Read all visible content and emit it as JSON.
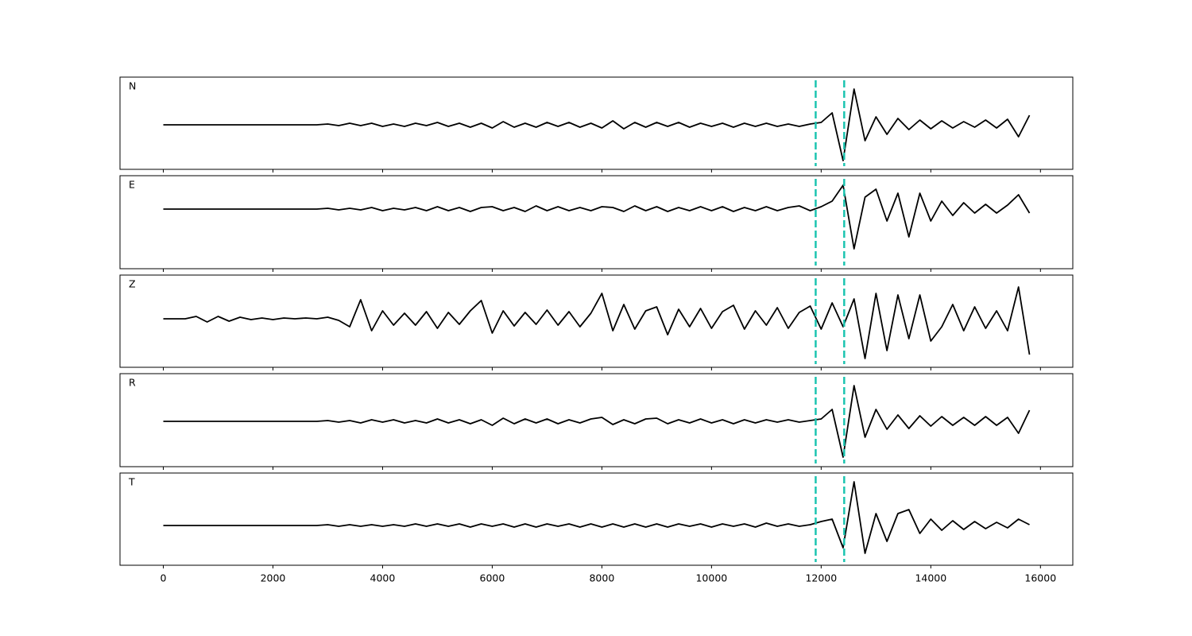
{
  "chart_data": {
    "type": "line",
    "x": [
      0,
      200,
      400,
      600,
      800,
      1000,
      1200,
      1400,
      1600,
      1800,
      2000,
      2200,
      2400,
      2600,
      2800,
      3000,
      3200,
      3400,
      3600,
      3800,
      4000,
      4200,
      4400,
      4600,
      4800,
      5000,
      5200,
      5400,
      5600,
      5800,
      6000,
      6200,
      6400,
      6600,
      6800,
      7000,
      7200,
      7400,
      7600,
      7800,
      8000,
      8200,
      8400,
      8600,
      8800,
      9000,
      9200,
      9400,
      9600,
      9800,
      10000,
      10200,
      10400,
      10600,
      10800,
      11000,
      11200,
      11400,
      11600,
      11800,
      12000,
      12200,
      12400,
      12600,
      12800,
      13000,
      13200,
      13400,
      13600,
      13800,
      14000,
      14200,
      14400,
      14600,
      14800,
      15000,
      15200,
      15400,
      15600,
      15800
    ],
    "xlim": [
      -790,
      16590
    ],
    "xticks": [
      0,
      2000,
      4000,
      6000,
      8000,
      10000,
      12000,
      14000,
      16000
    ],
    "vlines": [
      11900,
      12420
    ],
    "vline_color": "#1cc4b0",
    "series": [
      {
        "name": "N",
        "color": "#000000",
        "ylim": [
          -5.6,
          6.0
        ],
        "values": [
          0,
          0,
          0,
          0,
          0,
          0,
          0,
          0,
          0,
          0,
          0,
          0,
          0,
          0,
          0,
          0.1,
          -0.1,
          0.2,
          -0.1,
          0.2,
          -0.2,
          0.1,
          -0.2,
          0.2,
          -0.1,
          0.3,
          -0.2,
          0.2,
          -0.3,
          0.2,
          -0.4,
          0.4,
          -0.3,
          0.2,
          -0.3,
          0.3,
          -0.2,
          0.3,
          -0.3,
          0.2,
          -0.4,
          0.5,
          -0.5,
          0.3,
          -0.3,
          0.3,
          -0.2,
          0.3,
          -0.3,
          0.2,
          -0.2,
          0.2,
          -0.3,
          0.2,
          -0.2,
          0.2,
          -0.2,
          0.1,
          -0.2,
          0.1,
          0.3,
          1.5,
          -4.5,
          4.5,
          -2.0,
          1.0,
          -1.2,
          0.8,
          -0.6,
          0.6,
          -0.5,
          0.5,
          -0.4,
          0.4,
          -0.3,
          0.6,
          -0.4,
          0.7,
          -1.5,
          1.2
        ]
      },
      {
        "name": "E",
        "color": "#000000",
        "ylim": [
          -7.5,
          4.2
        ],
        "values": [
          0,
          0,
          0,
          0,
          0,
          0,
          0,
          0,
          0,
          0,
          0,
          0,
          0,
          0,
          0,
          0.1,
          -0.1,
          0.1,
          -0.1,
          0.2,
          -0.2,
          0.1,
          -0.1,
          0.2,
          -0.2,
          0.3,
          -0.2,
          0.2,
          -0.3,
          0.2,
          0.3,
          -0.2,
          0.2,
          -0.3,
          0.4,
          -0.2,
          0.3,
          -0.2,
          0.2,
          -0.2,
          0.3,
          0.2,
          -0.3,
          0.4,
          -0.2,
          0.3,
          -0.3,
          0.2,
          -0.2,
          0.3,
          -0.2,
          0.3,
          -0.3,
          0.2,
          -0.2,
          0.3,
          -0.2,
          0.2,
          0.4,
          -0.2,
          0.3,
          1.0,
          3.0,
          -5.0,
          1.5,
          2.5,
          -1.5,
          2.0,
          -3.5,
          2.0,
          -1.5,
          1.0,
          -0.8,
          0.8,
          -0.5,
          0.6,
          -0.5,
          0.5,
          1.8,
          -0.5
        ]
      },
      {
        "name": "Z",
        "color": "#000000",
        "ylim": [
          -6.1,
          5.5
        ],
        "values": [
          0,
          0,
          0,
          0.3,
          -0.4,
          0.3,
          -0.3,
          0.2,
          -0.1,
          0.1,
          -0.1,
          0.1,
          0,
          0.1,
          0,
          0.2,
          -0.2,
          -1.0,
          2.4,
          -1.5,
          1.0,
          -0.8,
          0.7,
          -0.8,
          0.9,
          -1.2,
          0.8,
          -0.7,
          1.0,
          2.3,
          -1.8,
          1.0,
          -0.9,
          0.8,
          -0.7,
          1.1,
          -0.8,
          0.9,
          -1.0,
          0.7,
          3.2,
          -1.5,
          1.8,
          -1.3,
          1.0,
          1.5,
          -2.0,
          1.2,
          -1.0,
          1.3,
          -1.2,
          0.9,
          1.7,
          -1.3,
          1.0,
          -0.8,
          1.4,
          -1.2,
          0.8,
          1.6,
          -1.3,
          2.0,
          -1.0,
          2.5,
          -5.0,
          3.2,
          -4.0,
          3.0,
          -2.5,
          3.0,
          -2.8,
          -1.0,
          1.8,
          -1.5,
          1.5,
          -1.2,
          1.0,
          -1.5,
          4.0,
          -4.5
        ]
      },
      {
        "name": "R",
        "color": "#000000",
        "ylim": [
          -5.7,
          6.0
        ],
        "values": [
          0,
          0,
          0,
          0,
          0,
          0,
          0,
          0,
          0,
          0,
          0,
          0,
          0,
          0,
          0,
          0.1,
          -0.1,
          0.1,
          -0.2,
          0.2,
          -0.1,
          0.2,
          -0.2,
          0.1,
          -0.2,
          0.3,
          -0.2,
          0.2,
          -0.3,
          0.2,
          -0.5,
          0.4,
          -0.3,
          0.3,
          -0.2,
          0.3,
          -0.3,
          0.2,
          -0.2,
          0.3,
          0.5,
          -0.4,
          0.2,
          -0.3,
          0.3,
          0.4,
          -0.3,
          0.2,
          -0.2,
          0.3,
          -0.2,
          0.2,
          -0.3,
          0.2,
          -0.2,
          0.2,
          -0.1,
          0.2,
          -0.1,
          0.1,
          0.3,
          1.5,
          -4.5,
          4.5,
          -2.0,
          1.5,
          -1.0,
          0.8,
          -0.9,
          0.7,
          -0.6,
          0.6,
          -0.5,
          0.5,
          -0.5,
          0.6,
          -0.5,
          0.5,
          -1.5,
          1.4
        ]
      },
      {
        "name": "T",
        "color": "#000000",
        "ylim": [
          -5.0,
          6.6
        ],
        "values": [
          0,
          0,
          0,
          0,
          0,
          0,
          0,
          0,
          0,
          0,
          0,
          0,
          0,
          0,
          0,
          0.1,
          -0.1,
          0.1,
          -0.1,
          0.1,
          -0.1,
          0.1,
          -0.1,
          0.2,
          -0.1,
          0.2,
          -0.1,
          0.2,
          -0.2,
          0.2,
          -0.1,
          0.2,
          -0.2,
          0.2,
          -0.2,
          0.2,
          -0.1,
          0.2,
          -0.2,
          0.2,
          -0.2,
          0.2,
          -0.2,
          0.2,
          -0.2,
          0.2,
          -0.2,
          0.2,
          -0.1,
          0.2,
          -0.2,
          0.2,
          -0.1,
          0.2,
          -0.2,
          0.3,
          -0.1,
          0.2,
          -0.1,
          0.1,
          0.5,
          0.8,
          -2.8,
          5.5,
          -3.5,
          1.5,
          -2.0,
          1.5,
          2.0,
          -1.0,
          0.8,
          -0.6,
          0.6,
          -0.5,
          0.5,
          -0.4,
          0.4,
          -0.3,
          0.8,
          0.1
        ]
      }
    ]
  }
}
